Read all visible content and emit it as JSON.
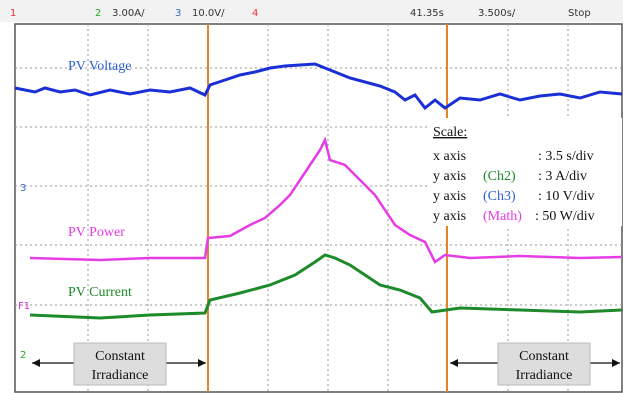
{
  "header": {
    "ch1": "1",
    "ch2": "2",
    "ch2_scale": "3.00A/",
    "ch3": "3",
    "ch3_scale": "10.0V/",
    "ch4": "4",
    "time": "41.35s",
    "timebase": "3.500s/",
    "status": "Stop"
  },
  "traces": [
    {
      "label": "PV Voltage"
    },
    {
      "label": "PV Power"
    },
    {
      "label": "PV Current"
    }
  ],
  "markers": [
    "3",
    "F1",
    "2"
  ],
  "scale": {
    "title": "Scale:",
    "rows": [
      {
        "axis": "x axis",
        "channel": null,
        "value": ": 3.5 s/div"
      },
      {
        "axis": "y axis",
        "channel": "(Ch2)",
        "value": ": 3 A/div"
      },
      {
        "axis": "y axis",
        "channel": "(Ch3)",
        "value": ": 10 V/div"
      },
      {
        "axis": "y axis",
        "channel": "(Math)",
        "value": ": 50 W/div"
      }
    ]
  },
  "annotations": [
    {
      "line1": "Constant",
      "line2": "Irradiance"
    },
    {
      "line1": "Constant",
      "line2": "Irradiance"
    }
  ]
}
